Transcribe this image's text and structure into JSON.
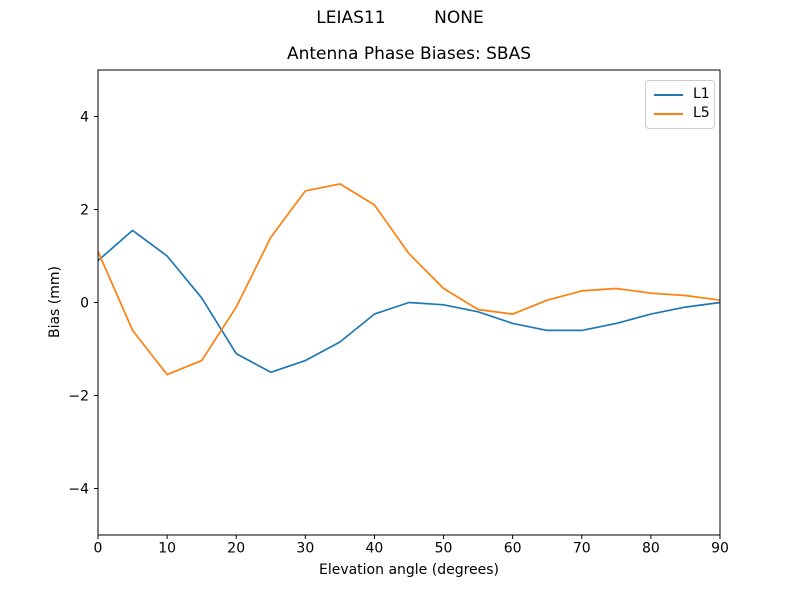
{
  "chart_data": {
    "type": "line",
    "suptitle": "LEIAS11         NONE",
    "title": "Antenna Phase Biases: SBAS",
    "xlabel": "Elevation angle (degrees)",
    "ylabel": "Bias (mm)",
    "xlim": [
      0,
      90
    ],
    "ylim": [
      -5,
      5
    ],
    "grid": false,
    "xticks": {
      "values": [
        0,
        10,
        20,
        30,
        40,
        50,
        60,
        70,
        80,
        90
      ],
      "labels": [
        "0",
        "10",
        "20",
        "30",
        "40",
        "50",
        "60",
        "70",
        "80",
        "90"
      ]
    },
    "yticks": {
      "values": [
        -4,
        -2,
        0,
        2,
        4
      ],
      "labels": [
        "−4",
        "−2",
        "0",
        "2",
        "4"
      ]
    },
    "x": [
      0,
      5,
      10,
      15,
      20,
      25,
      30,
      35,
      40,
      45,
      50,
      55,
      60,
      65,
      70,
      75,
      80,
      85,
      90
    ],
    "series": [
      {
        "name": "L1",
        "color": "#1f77b4",
        "values": [
          0.9,
          1.55,
          1.0,
          0.1,
          -1.1,
          -1.5,
          -1.25,
          -0.85,
          -0.25,
          0.0,
          -0.05,
          -0.2,
          -0.45,
          -0.6,
          -0.6,
          -0.45,
          -0.25,
          -0.1,
          0.0
        ]
      },
      {
        "name": "L5",
        "color": "#ff7f0e",
        "values": [
          1.1,
          -0.6,
          -1.55,
          -1.25,
          -0.1,
          1.4,
          2.4,
          2.55,
          2.1,
          1.05,
          0.3,
          -0.15,
          -0.25,
          0.05,
          0.25,
          0.3,
          0.2,
          0.15,
          0.05
        ]
      }
    ],
    "legend": {
      "position": "upper right",
      "entries": [
        "L1",
        "L5"
      ]
    },
    "axis_color": "#000000",
    "background": "#ffffff"
  }
}
